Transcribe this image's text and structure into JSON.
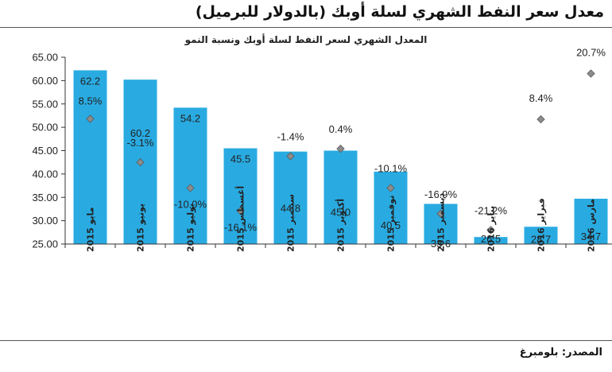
{
  "page": {
    "header": "معدل سعر النفط الشهري لسلة أوبك (بالدولار للبرميل)",
    "source": "المصدر: بلومبرغ"
  },
  "chart_data": {
    "type": "bar",
    "title": "المعدل الشهري لسعر النفط لسلة أوبك ونسبة النمو",
    "categories": [
      "مايو 2015",
      "يونيو 2015",
      "يوليو 2015",
      "أغسطس 2015",
      "سبتمبر 2015",
      "أكتوبر 2015",
      "نوفمبر 2015",
      "ديسمبر 2015",
      "يناير 2016",
      "فبراير 2016",
      "مارس 2016"
    ],
    "series": [
      {
        "values": [
          62.2,
          60.2,
          54.2,
          45.5,
          44.8,
          45.0,
          40.5,
          33.6,
          26.5,
          28.7,
          34.7
        ],
        "labels": [
          "62.2",
          "60.2",
          "54.2",
          "45.5",
          "44.8",
          "45.0",
          "40.5",
          "33.6",
          "26.5",
          "28.7",
          "34.7"
        ]
      },
      {
        "values": [
          8.5,
          -3.1,
          -10.0,
          -16.1,
          -1.4,
          0.4,
          -10.1,
          -16.9,
          -21.2,
          8.4,
          20.7
        ],
        "labels": [
          "8.5%",
          "-3.1%",
          "-10.0%",
          "-16.1%",
          "-1.4%",
          "0.4%",
          "-10.1%",
          "-16.9%",
          "-21.2%",
          "8.4%",
          "20.7%"
        ]
      }
    ],
    "yticks": [
      "25.00",
      "30.00",
      "35.00",
      "40.00",
      "45.00",
      "50.00",
      "55.00",
      "60.00",
      "65.00"
    ],
    "ylim": [
      25,
      65
    ],
    "growth_marker_positions": [
      51.8,
      42.5,
      37.0,
      32.1,
      43.8,
      45.4,
      37.0,
      31.5,
      28.0,
      51.7,
      61.5
    ],
    "colors": {
      "bar": "#29abe2",
      "marker": "#8c8c8c",
      "marker_edge": "#5a5a5a"
    }
  }
}
